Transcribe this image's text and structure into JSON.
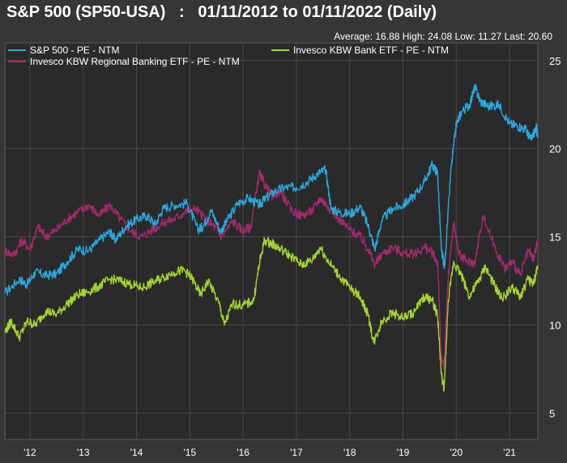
{
  "title": "S&P 500 (SP50-USA)   :   01/11/2012 to 01/11/2022 (Daily)",
  "stats": "Average: 16.88 High: 24.08 Low: 11.27 Last: 20.60",
  "chart_data": {
    "type": "line",
    "xlim": [
      2012.03,
      2022.03
    ],
    "ylim": [
      3.5,
      26
    ],
    "x_ticks": [
      {
        "label": "'12",
        "x": 2012.5
      },
      {
        "label": "'13",
        "x": 2013.5
      },
      {
        "label": "'14",
        "x": 2014.5
      },
      {
        "label": "'15",
        "x": 2015.5
      },
      {
        "label": "'16",
        "x": 2016.5
      },
      {
        "label": "'17",
        "x": 2017.5
      },
      {
        "label": "'18",
        "x": 2018.5
      },
      {
        "label": "'19",
        "x": 2019.5
      },
      {
        "label": "'20",
        "x": 2020.5
      },
      {
        "label": "'21",
        "x": 2021.5
      }
    ],
    "y_ticks": [
      5,
      10,
      15,
      20,
      25
    ],
    "grid": true,
    "legend_position": "top-left",
    "series": [
      {
        "name": "S&P 500 - PE - NTM",
        "color": "#29a8e0",
        "points": [
          [
            2012.03,
            11.8
          ],
          [
            2012.3,
            12.6
          ],
          [
            2012.45,
            12.3
          ],
          [
            2012.6,
            13.0
          ],
          [
            2012.8,
            12.8
          ],
          [
            2013.0,
            12.9
          ],
          [
            2013.2,
            13.6
          ],
          [
            2013.4,
            14.3
          ],
          [
            2013.6,
            14.2
          ],
          [
            2013.8,
            14.8
          ],
          [
            2014.0,
            15.3
          ],
          [
            2014.1,
            14.8
          ],
          [
            2014.3,
            15.6
          ],
          [
            2014.5,
            16.0
          ],
          [
            2014.7,
            16.2
          ],
          [
            2014.85,
            15.7
          ],
          [
            2015.0,
            16.6
          ],
          [
            2015.2,
            16.8
          ],
          [
            2015.45,
            16.9
          ],
          [
            2015.65,
            15.4
          ],
          [
            2015.75,
            15.6
          ],
          [
            2015.9,
            16.5
          ],
          [
            2016.08,
            15.3
          ],
          [
            2016.2,
            15.9
          ],
          [
            2016.4,
            16.9
          ],
          [
            2016.6,
            17.2
          ],
          [
            2016.8,
            16.8
          ],
          [
            2016.9,
            17.1
          ],
          [
            2017.1,
            17.6
          ],
          [
            2017.3,
            17.8
          ],
          [
            2017.5,
            17.8
          ],
          [
            2017.7,
            18.1
          ],
          [
            2017.9,
            18.6
          ],
          [
            2018.05,
            18.8
          ],
          [
            2018.15,
            16.6
          ],
          [
            2018.3,
            16.4
          ],
          [
            2018.5,
            16.3
          ],
          [
            2018.7,
            16.7
          ],
          [
            2018.85,
            15.6
          ],
          [
            2018.97,
            14.3
          ],
          [
            2019.1,
            15.9
          ],
          [
            2019.3,
            16.6
          ],
          [
            2019.5,
            16.8
          ],
          [
            2019.7,
            17.3
          ],
          [
            2019.9,
            18.1
          ],
          [
            2020.05,
            19.1
          ],
          [
            2020.15,
            18.6
          ],
          [
            2020.22,
            14.2
          ],
          [
            2020.28,
            13.3
          ],
          [
            2020.4,
            18.8
          ],
          [
            2020.5,
            21.4
          ],
          [
            2020.6,
            22.1
          ],
          [
            2020.75,
            22.5
          ],
          [
            2020.85,
            23.5
          ],
          [
            2020.95,
            22.7
          ],
          [
            2021.1,
            22.4
          ],
          [
            2021.3,
            22.5
          ],
          [
            2021.5,
            21.4
          ],
          [
            2021.65,
            21.3
          ],
          [
            2021.8,
            21.1
          ],
          [
            2021.9,
            20.5
          ],
          [
            2022.0,
            21.2
          ],
          [
            2022.03,
            20.6
          ]
        ]
      },
      {
        "name": "Invesco KBW Regional Banking ETF - PE - NTM",
        "color": "#a3296a",
        "points": [
          [
            2012.03,
            14.2
          ],
          [
            2012.2,
            14.0
          ],
          [
            2012.35,
            14.8
          ],
          [
            2012.5,
            14.3
          ],
          [
            2012.65,
            15.6
          ],
          [
            2012.8,
            15.0
          ],
          [
            2013.0,
            15.4
          ],
          [
            2013.2,
            16.0
          ],
          [
            2013.4,
            16.4
          ],
          [
            2013.6,
            16.8
          ],
          [
            2013.8,
            16.2
          ],
          [
            2014.0,
            16.8
          ],
          [
            2014.2,
            16.0
          ],
          [
            2014.4,
            15.3
          ],
          [
            2014.6,
            15.0
          ],
          [
            2014.8,
            15.4
          ],
          [
            2015.0,
            15.8
          ],
          [
            2015.2,
            16.0
          ],
          [
            2015.4,
            16.4
          ],
          [
            2015.6,
            16.6
          ],
          [
            2015.8,
            16.0
          ],
          [
            2015.95,
            15.6
          ],
          [
            2016.1,
            15.0
          ],
          [
            2016.3,
            15.9
          ],
          [
            2016.5,
            15.3
          ],
          [
            2016.65,
            15.6
          ],
          [
            2016.8,
            18.6
          ],
          [
            2016.9,
            18.0
          ],
          [
            2017.05,
            17.3
          ],
          [
            2017.2,
            17.6
          ],
          [
            2017.4,
            16.5
          ],
          [
            2017.6,
            16.2
          ],
          [
            2017.8,
            16.5
          ],
          [
            2017.95,
            17.2
          ],
          [
            2018.1,
            16.7
          ],
          [
            2018.3,
            16.0
          ],
          [
            2018.5,
            15.4
          ],
          [
            2018.7,
            15.0
          ],
          [
            2018.85,
            14.3
          ],
          [
            2018.97,
            13.4
          ],
          [
            2019.1,
            14.0
          ],
          [
            2019.3,
            14.4
          ],
          [
            2019.5,
            14.1
          ],
          [
            2019.7,
            14.0
          ],
          [
            2019.9,
            14.4
          ],
          [
            2020.05,
            14.1
          ],
          [
            2020.15,
            13.5
          ],
          [
            2020.22,
            8.0
          ],
          [
            2020.27,
            7.7
          ],
          [
            2020.35,
            12.8
          ],
          [
            2020.45,
            15.8
          ],
          [
            2020.55,
            14.0
          ],
          [
            2020.7,
            13.6
          ],
          [
            2020.85,
            13.5
          ],
          [
            2021.0,
            16.2
          ],
          [
            2021.2,
            14.6
          ],
          [
            2021.4,
            13.2
          ],
          [
            2021.55,
            13.6
          ],
          [
            2021.7,
            12.8
          ],
          [
            2021.85,
            14.2
          ],
          [
            2021.95,
            13.7
          ],
          [
            2022.03,
            14.8
          ]
        ]
      },
      {
        "name": "Invesco KBW Bank ETF - PE - NTM",
        "color": "#a5d52f",
        "points": [
          [
            2012.03,
            9.6
          ],
          [
            2012.15,
            10.2
          ],
          [
            2012.3,
            9.3
          ],
          [
            2012.45,
            10.2
          ],
          [
            2012.6,
            10.0
          ],
          [
            2012.8,
            10.8
          ],
          [
            2013.0,
            10.6
          ],
          [
            2013.2,
            11.2
          ],
          [
            2013.4,
            11.7
          ],
          [
            2013.6,
            11.9
          ],
          [
            2013.8,
            12.2
          ],
          [
            2014.0,
            12.6
          ],
          [
            2014.2,
            12.5
          ],
          [
            2014.4,
            12.3
          ],
          [
            2014.6,
            12.1
          ],
          [
            2014.8,
            12.4
          ],
          [
            2015.0,
            12.7
          ],
          [
            2015.2,
            13.0
          ],
          [
            2015.4,
            13.1
          ],
          [
            2015.55,
            12.6
          ],
          [
            2015.7,
            11.7
          ],
          [
            2015.85,
            12.5
          ],
          [
            2016.05,
            11.2
          ],
          [
            2016.15,
            10.0
          ],
          [
            2016.3,
            11.2
          ],
          [
            2016.5,
            11.1
          ],
          [
            2016.7,
            11.4
          ],
          [
            2016.8,
            13.4
          ],
          [
            2016.9,
            14.8
          ],
          [
            2017.05,
            14.6
          ],
          [
            2017.2,
            14.3
          ],
          [
            2017.4,
            13.9
          ],
          [
            2017.6,
            13.4
          ],
          [
            2017.8,
            13.7
          ],
          [
            2017.95,
            14.4
          ],
          [
            2018.1,
            13.6
          ],
          [
            2018.3,
            12.8
          ],
          [
            2018.5,
            12.1
          ],
          [
            2018.7,
            11.6
          ],
          [
            2018.85,
            10.5
          ],
          [
            2018.95,
            9.0
          ],
          [
            2019.1,
            10.2
          ],
          [
            2019.3,
            10.7
          ],
          [
            2019.5,
            10.4
          ],
          [
            2019.7,
            10.7
          ],
          [
            2019.9,
            11.6
          ],
          [
            2020.05,
            11.4
          ],
          [
            2020.15,
            10.5
          ],
          [
            2020.22,
            7.2
          ],
          [
            2020.27,
            6.3
          ],
          [
            2020.35,
            11.4
          ],
          [
            2020.45,
            13.6
          ],
          [
            2020.6,
            12.8
          ],
          [
            2020.75,
            11.6
          ],
          [
            2020.9,
            12.4
          ],
          [
            2021.05,
            13.3
          ],
          [
            2021.2,
            12.3
          ],
          [
            2021.35,
            11.5
          ],
          [
            2021.55,
            12.1
          ],
          [
            2021.7,
            11.6
          ],
          [
            2021.85,
            12.6
          ],
          [
            2021.95,
            12.3
          ],
          [
            2022.03,
            13.4
          ]
        ]
      }
    ]
  }
}
